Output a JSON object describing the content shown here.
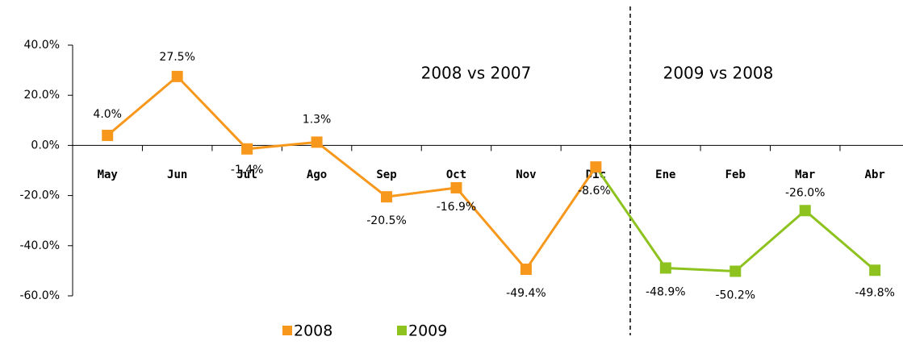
{
  "chart_data": {
    "type": "line",
    "categories": [
      "May",
      "Jun",
      "Jul",
      "Ago",
      "Sep",
      "Oct",
      "Nov",
      "Dic",
      "Ene",
      "Feb",
      "Mar",
      "Abr"
    ],
    "series": [
      {
        "name": "2008",
        "color": "#f7981d",
        "values": [
          4.0,
          27.5,
          -1.4,
          1.3,
          -20.5,
          -16.9,
          -49.4,
          -8.6,
          null,
          null,
          null,
          null
        ],
        "value_labels": [
          "4.0%",
          "27.5%",
          "-1.4%",
          "1.3%",
          "-20.5%",
          "-16.9%",
          "-49.4%",
          "-8.6%",
          null,
          null,
          null,
          null
        ]
      },
      {
        "name": "2009",
        "color": "#8dc21f",
        "values": [
          null,
          null,
          null,
          null,
          null,
          null,
          null,
          -8.6,
          -48.9,
          -50.2,
          -26.0,
          -49.8
        ],
        "value_labels": [
          null,
          null,
          null,
          null,
          null,
          null,
          null,
          null,
          "-48.9%",
          "-50.2%",
          "-26.0%",
          "-49.8%"
        ]
      }
    ],
    "ylim": [
      -60,
      40
    ],
    "yticks": [
      {
        "value": -60,
        "label": "-60.0%"
      },
      {
        "value": -40,
        "label": "-40.0%"
      },
      {
        "value": -20,
        "label": "-20.0%"
      },
      {
        "value": 0,
        "label": "0.0%"
      },
      {
        "value": 20,
        "label": "20.0%"
      },
      {
        "value": 40,
        "label": "40.0%"
      }
    ],
    "annotations": [
      "2008 vs 2007",
      "2009 vs 2008"
    ],
    "legend": "bottom"
  }
}
